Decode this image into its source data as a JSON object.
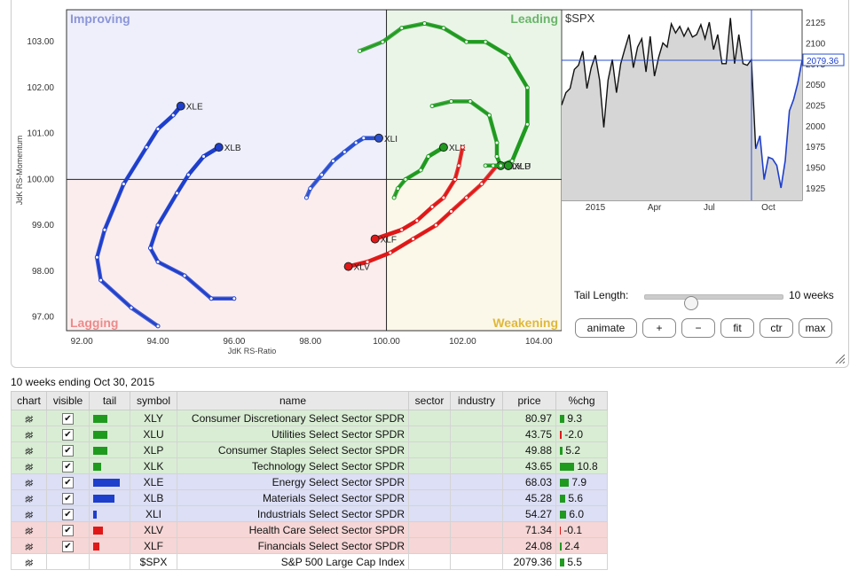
{
  "chart_data": [
    {
      "type": "scatter",
      "title": "",
      "xlabel": "JdK RS-Ratio",
      "ylabel": "JdK RS-Momentum",
      "xlim": [
        91.6,
        104.6
      ],
      "ylim": [
        96.7,
        103.7
      ],
      "xticks": [
        "92.00",
        "94.00",
        "96.00",
        "98.00",
        "100.00",
        "102.00",
        "104.00"
      ],
      "yticks": [
        "97.00",
        "98.00",
        "99.00",
        "100.00",
        "101.00",
        "102.00",
        "103.00"
      ],
      "quadrants": {
        "improving": "Improving",
        "leading": "Leading",
        "weakening": "Weakening",
        "lagging": "Lagging"
      },
      "series": [
        {
          "name": "XLE",
          "color": "#1e3fcc",
          "points": [
            [
              94.0,
              96.8
            ],
            [
              93.3,
              97.2
            ],
            [
              92.5,
              97.8
            ],
            [
              92.4,
              98.3
            ],
            [
              92.6,
              98.9
            ],
            [
              93.1,
              99.9
            ],
            [
              93.7,
              100.7
            ],
            [
              94.0,
              101.1
            ],
            [
              94.4,
              101.4
            ],
            [
              94.6,
              101.6
            ]
          ]
        },
        {
          "name": "XLB",
          "color": "#1e3fcc",
          "points": [
            [
              96.0,
              97.4
            ],
            [
              95.4,
              97.4
            ],
            [
              94.7,
              97.9
            ],
            [
              94.0,
              98.2
            ],
            [
              93.8,
              98.5
            ],
            [
              94.0,
              99.0
            ],
            [
              94.5,
              99.7
            ],
            [
              94.8,
              100.1
            ],
            [
              95.2,
              100.5
            ],
            [
              95.6,
              100.7
            ]
          ]
        },
        {
          "name": "XLI",
          "color": "#2a4fd0",
          "points": [
            [
              97.9,
              99.6
            ],
            [
              98.0,
              99.8
            ],
            [
              98.3,
              100.1
            ],
            [
              98.6,
              100.4
            ],
            [
              98.9,
              100.6
            ],
            [
              99.2,
              100.8
            ],
            [
              99.4,
              100.9
            ],
            [
              99.8,
              100.9
            ]
          ]
        },
        {
          "name": "XLK",
          "color": "#1f9a1f",
          "points": [
            [
              100.2,
              99.6
            ],
            [
              100.3,
              99.8
            ],
            [
              100.5,
              100.0
            ],
            [
              100.9,
              100.2
            ],
            [
              101.1,
              100.5
            ],
            [
              101.5,
              100.7
            ]
          ]
        },
        {
          "name": "XLF",
          "color": "#e01818",
          "points": [
            [
              102.0,
              100.7
            ],
            [
              101.9,
              100.3
            ],
            [
              101.8,
              100.0
            ],
            [
              101.5,
              99.6
            ],
            [
              101.2,
              99.4
            ],
            [
              100.8,
              99.1
            ],
            [
              100.4,
              98.9
            ],
            [
              99.7,
              98.7
            ]
          ]
        },
        {
          "name": "XLV",
          "color": "#e01818",
          "points": [
            [
              102.9,
              100.3
            ],
            [
              102.5,
              99.9
            ],
            [
              102.1,
              99.6
            ],
            [
              101.7,
              99.3
            ],
            [
              101.3,
              99.0
            ],
            [
              100.7,
              98.7
            ],
            [
              100.1,
              98.4
            ],
            [
              99.5,
              98.2
            ],
            [
              99.0,
              98.1
            ]
          ]
        },
        {
          "name": "XLU",
          "color": "#1f9a1f",
          "points": [
            [
              101.2,
              101.6
            ],
            [
              101.7,
              101.7
            ],
            [
              102.2,
              101.7
            ],
            [
              102.7,
              101.4
            ],
            [
              102.9,
              100.8
            ],
            [
              102.9,
              100.5
            ],
            [
              103.0,
              100.3
            ],
            [
              103.2,
              100.3
            ]
          ]
        },
        {
          "name": "XLY",
          "color": "#1f9a1f",
          "points": [
            [
              99.3,
              102.8
            ],
            [
              99.9,
              103.0
            ],
            [
              100.4,
              103.3
            ],
            [
              101.0,
              103.4
            ],
            [
              101.5,
              103.3
            ],
            [
              102.1,
              103.0
            ],
            [
              102.6,
              103.0
            ],
            [
              103.2,
              102.7
            ],
            [
              103.7,
              102.0
            ],
            [
              103.7,
              101.2
            ],
            [
              103.3,
              100.4
            ],
            [
              103.0,
              100.3
            ]
          ]
        },
        {
          "name": "XLP",
          "color": "#1f9a1f",
          "points": [
            [
              102.6,
              100.3
            ],
            [
              102.8,
              100.3
            ],
            [
              103.0,
              100.3
            ],
            [
              103.2,
              100.3
            ]
          ]
        }
      ]
    },
    {
      "type": "area",
      "title": "$SPX",
      "xticks": [
        "2015",
        "Apr",
        "Jul",
        "Oct"
      ],
      "yticks": [
        "2125",
        "2100",
        "2075",
        "2050",
        "2025",
        "2000",
        "1975",
        "1950",
        "1925"
      ],
      "ylim": [
        1910,
        2140
      ],
      "current_label": "2079.36",
      "values": [
        2025,
        2040,
        2045,
        2068,
        2073,
        2090,
        2045,
        2070,
        2085,
        2055,
        1998,
        2055,
        2080,
        2040,
        2075,
        2093,
        2110,
        2070,
        2095,
        2105,
        2065,
        2108,
        2060,
        2083,
        2100,
        2095,
        2123,
        2112,
        2120,
        2108,
        2118,
        2107,
        2110,
        2122,
        2105,
        2125,
        2092,
        2110,
        2075,
        2075,
        2130,
        2075,
        2110,
        2075,
        2073,
        2080,
        1972,
        1988,
        1935,
        1962,
        1960,
        1952,
        1925,
        1958,
        2018,
        2032,
        2052,
        2079
      ]
    }
  ],
  "tail": {
    "label": "Tail Length:",
    "value_label": "10 weeks",
    "fraction": 0.33
  },
  "buttons": [
    "animate",
    "+",
    "−",
    "fit",
    "ctr",
    "max"
  ],
  "caption": "10 weeks ending Oct 30, 2015",
  "table": {
    "headers": [
      "chart",
      "visible",
      "tail",
      "symbol",
      "name",
      "sector",
      "industry",
      "price",
      "%chg"
    ],
    "rows": [
      {
        "symbol": "XLY",
        "name": "Consumer Discretionary Select Sector SPDR",
        "price": "80.97",
        "chg": "9.3",
        "tailw": 16,
        "tailc": "#1f9a1f",
        "chgw": 5,
        "chgc": "#1f9a1f",
        "group": "g-lead",
        "visible": true
      },
      {
        "symbol": "XLU",
        "name": "Utilities Select Sector SPDR",
        "price": "43.75",
        "chg": "-2.0",
        "tailw": 16,
        "tailc": "#1f9a1f",
        "chgw": 2,
        "chgc": "#e01818",
        "group": "g-lead",
        "visible": true
      },
      {
        "symbol": "XLP",
        "name": "Consumer Staples Select Sector SPDR",
        "price": "49.88",
        "chg": "5.2",
        "tailw": 16,
        "tailc": "#1f9a1f",
        "chgw": 3,
        "chgc": "#1f9a1f",
        "group": "g-lead",
        "visible": true
      },
      {
        "symbol": "XLK",
        "name": "Technology Select Sector SPDR",
        "price": "43.65",
        "chg": "10.8",
        "tailw": 9,
        "tailc": "#1f9a1f",
        "chgw": 16,
        "chgc": "#1f9a1f",
        "group": "g-lead",
        "visible": true
      },
      {
        "symbol": "XLE",
        "name": "Energy Select Sector SPDR",
        "price": "68.03",
        "chg": "7.9",
        "tailw": 30,
        "tailc": "#1e3fcc",
        "chgw": 10,
        "chgc": "#1f9a1f",
        "group": "g-imp",
        "visible": true
      },
      {
        "symbol": "XLB",
        "name": "Materials Select Sector SPDR",
        "price": "45.28",
        "chg": "5.6",
        "tailw": 24,
        "tailc": "#1e3fcc",
        "chgw": 6,
        "chgc": "#1f9a1f",
        "group": "g-imp",
        "visible": true
      },
      {
        "symbol": "XLI",
        "name": "Industrials Select Sector SPDR",
        "price": "54.27",
        "chg": "6.0",
        "tailw": 4,
        "tailc": "#1e3fcc",
        "chgw": 7,
        "chgc": "#1f9a1f",
        "group": "g-imp",
        "visible": true
      },
      {
        "symbol": "XLV",
        "name": "Health Care Select Sector SPDR",
        "price": "71.34",
        "chg": "-0.1",
        "tailw": 11,
        "tailc": "#e01818",
        "chgw": 1,
        "chgc": "#e01818",
        "group": "g-lag",
        "visible": true
      },
      {
        "symbol": "XLF",
        "name": "Financials Select Sector SPDR",
        "price": "24.08",
        "chg": "2.4",
        "tailw": 7,
        "tailc": "#e01818",
        "chgw": 2,
        "chgc": "#1f9a1f",
        "group": "g-lag",
        "visible": true
      },
      {
        "symbol": "$SPX",
        "name": "S&P 500 Large Cap Index",
        "price": "2079.36",
        "chg": "5.5",
        "tailw": 0,
        "tailc": "#1f9a1f",
        "chgw": 5,
        "chgc": "#1f9a1f",
        "group": "g-none",
        "visible": false
      }
    ]
  }
}
